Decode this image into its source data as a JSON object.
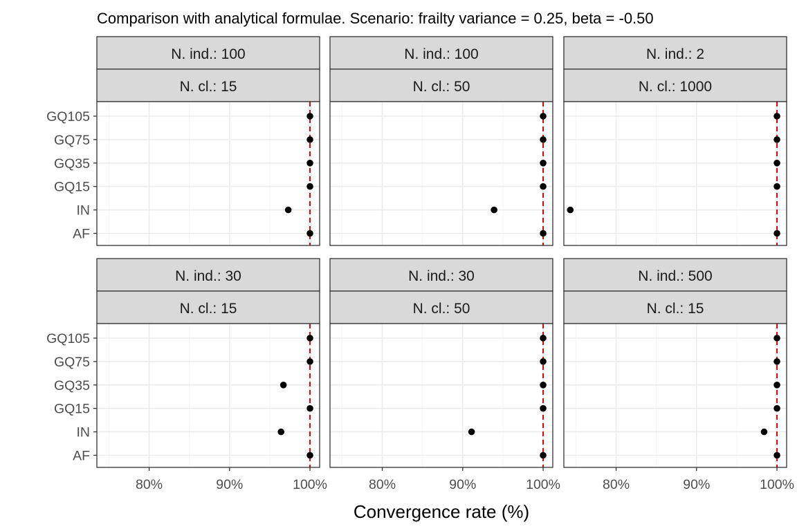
{
  "chart_data": {
    "type": "scatter",
    "title": "Comparison with analytical formulae. Scenario: frailty variance = 0.25, beta = -0.50",
    "xlabel": "Convergence rate (%)",
    "ylabel": "",
    "xlim": [
      73.5,
      101.2
    ],
    "xticks": [
      80,
      90,
      100
    ],
    "xtick_labels": [
      "80%",
      "90%",
      "100%"
    ],
    "categories": [
      "GQ105",
      "GQ75",
      "GQ35",
      "GQ15",
      "IN",
      "AF"
    ],
    "reference_line": {
      "x": 100,
      "color": "#e00000",
      "style": "dashed"
    },
    "grid": true,
    "facets": [
      {
        "strip_top": "N. ind.: 100",
        "strip_bottom": "N. cl.: 15",
        "values": [
          100,
          100,
          100,
          100,
          97.3,
          100
        ]
      },
      {
        "strip_top": "N. ind.: 100",
        "strip_bottom": "N. cl.: 50",
        "values": [
          100,
          100,
          100,
          100,
          93.9,
          100
        ]
      },
      {
        "strip_top": "N. ind.: 2",
        "strip_bottom": "N. cl.: 1000",
        "values": [
          100,
          100,
          100,
          100,
          74.3,
          100
        ]
      },
      {
        "strip_top": "N. ind.: 30",
        "strip_bottom": "N. cl.: 15",
        "values": [
          100,
          100,
          96.7,
          100,
          96.4,
          100
        ]
      },
      {
        "strip_top": "N. ind.: 30",
        "strip_bottom": "N. cl.: 50",
        "values": [
          100,
          100,
          100,
          100,
          91.1,
          100
        ]
      },
      {
        "strip_top": "N. ind.: 500",
        "strip_bottom": "N. cl.: 15",
        "values": [
          100,
          100,
          100,
          100,
          98.4,
          100
        ]
      }
    ]
  },
  "colors": {
    "point": "#000000",
    "reference_line": "#e00000",
    "strip_fill": "#d9d9d9",
    "grid_major": "#ebebeb",
    "grid_minor": "#f5f5f5",
    "panel_border": "#333333"
  }
}
